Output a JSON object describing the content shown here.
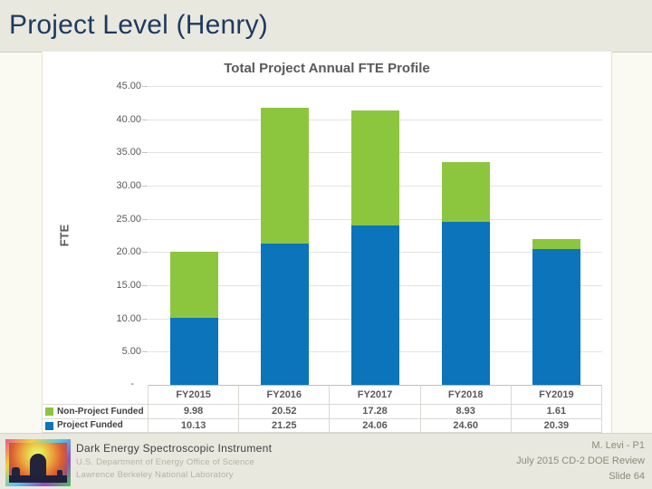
{
  "slide": {
    "title": "Project Level (Henry)"
  },
  "chart_data": {
    "type": "bar",
    "stacked": true,
    "title": "Total Project Annual FTE Profile",
    "ylabel": "FTE",
    "categories": [
      "FY2015",
      "FY2016",
      "FY2017",
      "FY2018",
      "FY2019"
    ],
    "series": [
      {
        "name": "Non-Project Funded",
        "color": "#8cc63f",
        "values": [
          9.98,
          20.52,
          17.28,
          8.93,
          1.61
        ]
      },
      {
        "name": "Project Funded",
        "color": "#0b74ba",
        "values": [
          10.13,
          21.25,
          24.06,
          24.6,
          20.39
        ]
      }
    ],
    "stack_order_bottom_to_top": [
      "Project Funded",
      "Non-Project Funded"
    ],
    "ylim": [
      0,
      45
    ],
    "ytick_step": 5,
    "ytick_decimals": 2,
    "zero_tick_label": "-",
    "grid": true,
    "legend_position": "data-table-left",
    "data_table": true
  },
  "footer": {
    "logo": "desi-logo",
    "project_title": "Dark Energy Spectroscopic Instrument",
    "dept_line": "U.S. Department of Energy Office of Science",
    "lab_line": "Lawrence Berkeley National Laboratory",
    "presenter": "M. Levi - P1",
    "event": "July 2015 CD-2 DOE Review",
    "slide_label": "Slide 64"
  },
  "colors": {
    "band_beige": "#e9e8df",
    "body_bg": "#faf9f2",
    "title_navy": "#1e3a5f",
    "chart_text_gray": "#595959",
    "bar_blue": "#0b74ba",
    "bar_green": "#8cc63f"
  }
}
